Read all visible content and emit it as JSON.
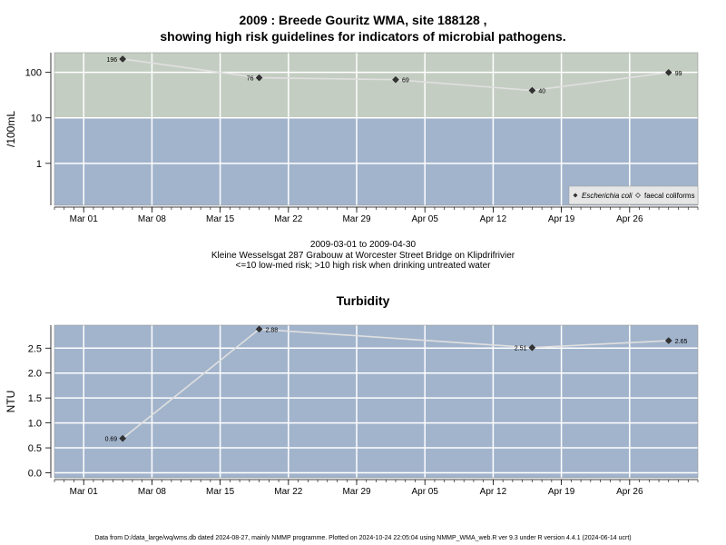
{
  "header": {
    "title_line1": "2009 : Breede Gouritz WMA, site 188128 ,",
    "title_line2": "showing high risk guidelines for indicators of microbial pathogens."
  },
  "middle": {
    "date_range": "2009-03-01 to 2009-04-30",
    "site_desc": "Kleine Wesselsgat 287 Grabouw at Worcester Street Bridge on Klipdrifrivier",
    "risk_note": "<=10 low-med risk; >10 high risk when drinking untreated water"
  },
  "footer": {
    "text": "Data from D:/data_large/wq/wms.db dated 2024-08-27, mainly NMMP programme. Plotted on 2024-10-24 22:05:04 using NMMP_WMA_web.R ver 9.3 under R version 4.4.1 (2024-06-14 ucrt)"
  },
  "colors": {
    "high_risk_band": "#c4cdc2",
    "low_risk_band": "#a2b4cc",
    "panel_bg": "#a2b4cc",
    "grid": "#ffffff",
    "line": "#e0e0e0",
    "marker": "#333333"
  },
  "chart_data": [
    {
      "type": "line",
      "title": "",
      "ylabel": "/100mL",
      "yscale": "log",
      "xlim": [
        "2009-02-26",
        "2009-05-03"
      ],
      "ylim": [
        0.12,
        270
      ],
      "yticks": [
        1,
        10,
        100
      ],
      "ytick_labels": [
        "1",
        "10",
        "100"
      ],
      "xticks": [
        "2009-03-01",
        "2009-03-08",
        "2009-03-15",
        "2009-03-22",
        "2009-03-29",
        "2009-04-05",
        "2009-04-12",
        "2009-04-19",
        "2009-04-26"
      ],
      "xtick_labels": [
        "Mar 01",
        "Mar 08",
        "Mar 15",
        "Mar 22",
        "Mar 29",
        "Apr 05",
        "Apr 12",
        "Apr 19",
        "Apr 26"
      ],
      "threshold": 10,
      "grid": true,
      "legend_position": "bottom-right",
      "series": [
        {
          "name": "Escherichia coli",
          "marker": "filled-diamond",
          "x": [
            "2009-03-05",
            "2009-03-19",
            "2009-04-02",
            "2009-04-16",
            "2009-04-30"
          ],
          "values": [
            196,
            76,
            69,
            40,
            99
          ],
          "labels": [
            "196",
            "76",
            "69",
            "40",
            "99"
          ]
        },
        {
          "name": "faecal coliforms",
          "marker": "open-diamond",
          "x": [],
          "values": [],
          "labels": []
        }
      ]
    },
    {
      "type": "line",
      "title": "Turbidity",
      "ylabel": "NTU",
      "yscale": "linear",
      "xlim": [
        "2009-02-26",
        "2009-05-03"
      ],
      "ylim": [
        -0.1,
        2.96
      ],
      "yticks": [
        0,
        0.5,
        1,
        1.5,
        2,
        2.5
      ],
      "ytick_labels": [
        "0.0",
        "0.5",
        "1.0",
        "1.5",
        "2.0",
        "2.5"
      ],
      "xticks": [
        "2009-03-01",
        "2009-03-08",
        "2009-03-15",
        "2009-03-22",
        "2009-03-29",
        "2009-04-05",
        "2009-04-12",
        "2009-04-19",
        "2009-04-26"
      ],
      "xtick_labels": [
        "Mar 01",
        "Mar 08",
        "Mar 15",
        "Mar 22",
        "Mar 29",
        "Apr 05",
        "Apr 12",
        "Apr 19",
        "Apr 26"
      ],
      "grid": true,
      "series": [
        {
          "marker": "filled-diamond",
          "x": [
            "2009-03-05",
            "2009-03-19",
            "2009-04-16",
            "2009-04-30"
          ],
          "values": [
            0.69,
            2.88,
            2.51,
            2.65
          ],
          "labels": [
            "0.69",
            "2.88",
            "2.51",
            "2.65"
          ]
        }
      ]
    }
  ]
}
